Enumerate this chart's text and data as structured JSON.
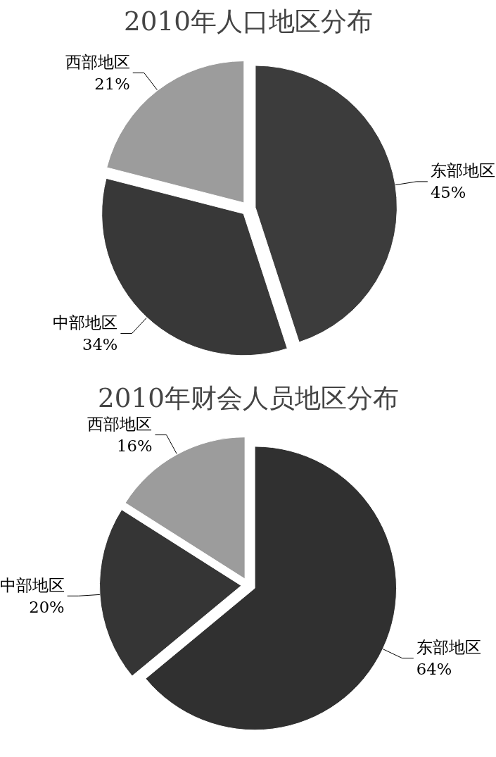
{
  "chart_data": [
    {
      "type": "pie",
      "title": "2010年人口地区分布",
      "categories": [
        "东部地区",
        "中部地区",
        "西部地区"
      ],
      "values": [
        45,
        34,
        21
      ],
      "colors": [
        "#3c3c3c",
        "#383838",
        "#9c9c9c"
      ],
      "value_labels": [
        "45%",
        "34%",
        "21%"
      ]
    },
    {
      "type": "pie",
      "title": "2010年财会人员地区分布",
      "categories": [
        "东部地区",
        "中部地区",
        "西部地区"
      ],
      "values": [
        64,
        20,
        16
      ],
      "colors": [
        "#303030",
        "#353535",
        "#9c9c9c"
      ],
      "value_labels": [
        "64%",
        "20%",
        "16%"
      ]
    }
  ]
}
